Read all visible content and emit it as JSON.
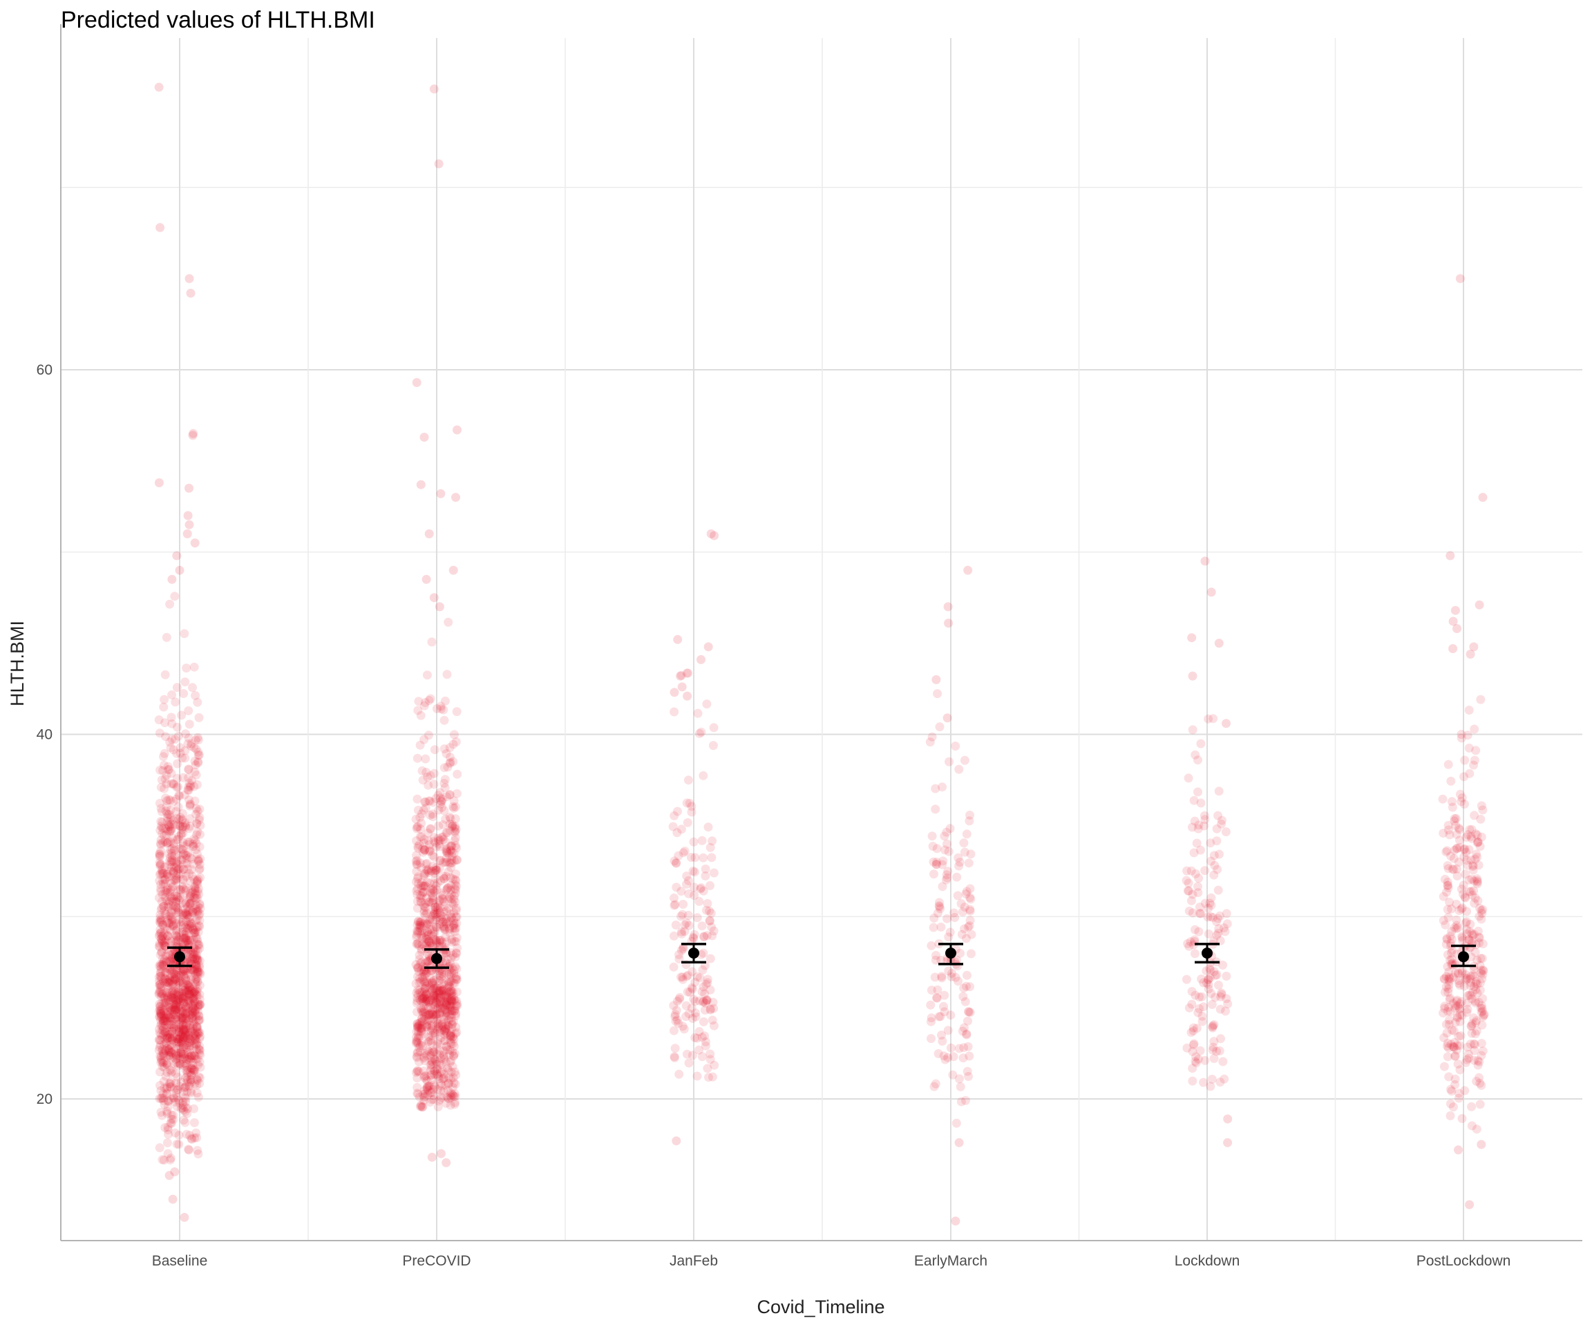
{
  "chart_data": {
    "type": "scatter",
    "title": "Predicted values of HLTH.BMI",
    "xlabel": "Covid_Timeline",
    "ylabel": "HLTH.BMI",
    "categories": [
      "Baseline",
      "PreCOVID",
      "JanFeb",
      "EarlyMarch",
      "Lockdown",
      "PostLockdown"
    ],
    "ylim": [
      10.5,
      79
    ],
    "y_ticks": [
      20,
      40,
      60
    ],
    "y_minor_ticks": [
      30,
      50,
      70
    ],
    "grid": true,
    "point_color": "#e0102a",
    "estimate_color": "#000000",
    "estimates": [
      {
        "category": "Baseline",
        "value": 27.8,
        "ci_low": 27.3,
        "ci_high": 28.3
      },
      {
        "category": "PreCOVID",
        "value": 27.7,
        "ci_low": 27.2,
        "ci_high": 28.2
      },
      {
        "category": "JanFeb",
        "value": 28.0,
        "ci_low": 27.5,
        "ci_high": 28.5
      },
      {
        "category": "EarlyMarch",
        "value": 28.0,
        "ci_low": 27.4,
        "ci_high": 28.5
      },
      {
        "category": "Lockdown",
        "value": 28.0,
        "ci_low": 27.5,
        "ci_high": 28.5
      },
      {
        "category": "PostLockdown",
        "value": 27.8,
        "ci_low": 27.3,
        "ci_high": 28.4
      }
    ],
    "raw_points": [
      {
        "category": "Baseline",
        "n": 1400,
        "median": 26.0,
        "spread": 5.2,
        "min": 13.5,
        "max": 75.5,
        "outliers": [
          75.5,
          67.8,
          65.0,
          64.2,
          56.5,
          56.4,
          53.8,
          53.5,
          52.0,
          51.5,
          51.0,
          50.5,
          49.8,
          49.0,
          48.5,
          16.0,
          15.8,
          14.5,
          13.5
        ]
      },
      {
        "category": "PreCOVID",
        "n": 1000,
        "median": 26.5,
        "spread": 5.2,
        "min": 16.5,
        "max": 75.4,
        "outliers": [
          75.4,
          71.3,
          59.3,
          56.7,
          56.3,
          53.7,
          53.2,
          53.0,
          51.0,
          49.0,
          48.5,
          47.5,
          47.0,
          17.0,
          16.8,
          16.5
        ]
      },
      {
        "category": "JanFeb",
        "n": 180,
        "median": 26.8,
        "spread": 4.8,
        "min": 17.7,
        "max": 51.0,
        "outliers": [
          51.0,
          50.9,
          45.2,
          44.8,
          44.1,
          43.2,
          42.6,
          42.3,
          42.1,
          17.7
        ]
      },
      {
        "category": "EarlyMarch",
        "n": 150,
        "median": 26.8,
        "spread": 4.8,
        "min": 13.3,
        "max": 49.0,
        "outliers": [
          49.0,
          47.0,
          46.1,
          43.0,
          40.9,
          17.6,
          13.3
        ]
      },
      {
        "category": "Lockdown",
        "n": 160,
        "median": 26.8,
        "spread": 4.8,
        "min": 17.6,
        "max": 49.5,
        "outliers": [
          49.5,
          47.8,
          45.3,
          45.0,
          43.2,
          40.6,
          17.6,
          18.9
        ]
      },
      {
        "category": "PostLockdown",
        "n": 350,
        "median": 26.8,
        "spread": 5.0,
        "min": 14.2,
        "max": 65.0,
        "outliers": [
          65.0,
          53.0,
          49.8,
          47.1,
          46.8,
          46.2,
          45.8,
          44.8,
          44.7,
          44.4,
          17.2,
          17.5,
          14.2
        ]
      }
    ]
  }
}
